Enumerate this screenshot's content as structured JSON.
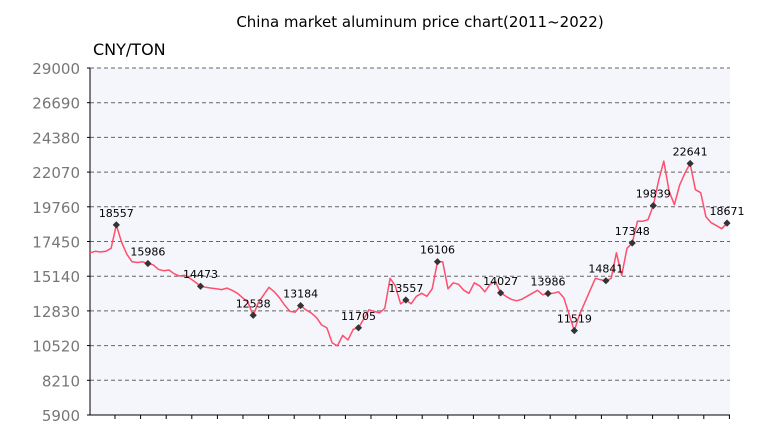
{
  "chart_data": {
    "type": "line",
    "title": "China market aluminum price chart(2011~2022)",
    "ylabel": "CNY/TON",
    "ylim": [
      5900,
      29000
    ],
    "yticks": [
      5900,
      8210,
      10520,
      12830,
      15140,
      17450,
      19760,
      22070,
      24380,
      26690,
      29000
    ],
    "grid": true,
    "colors": {
      "line": "#ff4f6d",
      "marker": "#333333",
      "plot_bg": "#f5f5fc"
    },
    "series": [
      {
        "values": [
          16700,
          16800,
          16750,
          16800,
          17000,
          18557,
          17400,
          16600,
          16100,
          16050,
          16100,
          15986,
          15900,
          15600,
          15500,
          15550,
          15300,
          15150,
          15200,
          15000,
          14750,
          14473,
          14400,
          14350,
          14300,
          14250,
          14350,
          14200,
          14000,
          13700,
          13400,
          12538,
          13400,
          13900,
          14400,
          14100,
          13700,
          13200,
          12800,
          12750,
          13184,
          12900,
          12700,
          12400,
          11900,
          11700,
          10700,
          10500,
          11200,
          10900,
          11600,
          11705,
          12300,
          12900,
          12800,
          12700,
          13000,
          15000,
          14500,
          13300,
          13557,
          13300,
          13800,
          14000,
          13800,
          14300,
          16106,
          16100,
          14300,
          14700,
          14600,
          14200,
          14000,
          14700,
          14500,
          14100,
          14600,
          14800,
          14027,
          13800,
          13600,
          13500,
          13600,
          13800,
          14000,
          14200,
          13900,
          13986,
          14000,
          14100,
          13700,
          12600,
          11519,
          12600,
          13400,
          14200,
          15000,
          14900,
          14841,
          15000,
          16700,
          15200,
          17000,
          17348,
          18800,
          18800,
          18900,
          19839,
          21500,
          22800,
          20800,
          19900,
          21200,
          22000,
          22641,
          20900,
          20700,
          19100,
          18700,
          18500,
          18300,
          18671
        ]
      }
    ],
    "point_labels": [
      {
        "index": 5,
        "label": "18557"
      },
      {
        "index": 11,
        "label": "15986"
      },
      {
        "index": 21,
        "label": "14473"
      },
      {
        "index": 31,
        "label": "12538"
      },
      {
        "index": 40,
        "label": "13184"
      },
      {
        "index": 51,
        "label": "11705"
      },
      {
        "index": 60,
        "label": "13557"
      },
      {
        "index": 66,
        "label": "16106"
      },
      {
        "index": 78,
        "label": "14027"
      },
      {
        "index": 87,
        "label": "13986"
      },
      {
        "index": 92,
        "label": "11519"
      },
      {
        "index": 98,
        "label": "14841"
      },
      {
        "index": 103,
        "label": "17348"
      },
      {
        "index": 107,
        "label": "19839"
      },
      {
        "index": 114,
        "label": "22641"
      },
      {
        "index": 121,
        "label": "18671"
      }
    ]
  }
}
